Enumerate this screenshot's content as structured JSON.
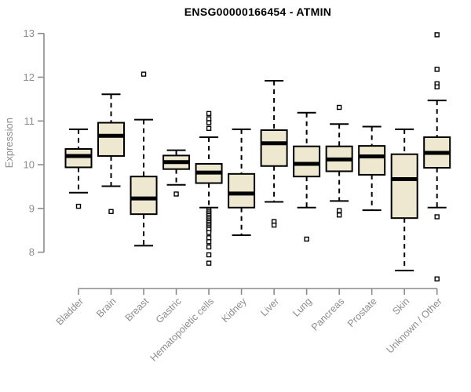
{
  "chart_data": {
    "type": "boxplot",
    "title": "ENSG00000166454 - ATMIN",
    "ylabel": "Expression",
    "xlabel": "",
    "yticks": [
      8,
      9,
      10,
      11,
      12,
      13
    ],
    "ylim": [
      7.3,
      13.1
    ],
    "grid": false,
    "legend": null,
    "categories": [
      "Bladder",
      "Brain",
      "Breast",
      "Gastric",
      "Hematopoietic cells",
      "Kidney",
      "Liver",
      "Lung",
      "Pancreas",
      "Prostate",
      "Skin",
      "Unknown / Other"
    ],
    "series": [
      {
        "category": "Bladder",
        "whisker_low": 9.36,
        "q1": 9.94,
        "median": 10.2,
        "q3": 10.36,
        "whisker_high": 10.81,
        "outliers": [
          9.05
        ]
      },
      {
        "category": "Brain",
        "whisker_low": 9.51,
        "q1": 10.2,
        "median": 10.66,
        "q3": 10.96,
        "whisker_high": 11.61,
        "outliers": [
          8.93
        ]
      },
      {
        "category": "Breast",
        "whisker_low": 8.15,
        "q1": 8.87,
        "median": 9.23,
        "q3": 9.73,
        "whisker_high": 11.03,
        "outliers": [
          12.07
        ]
      },
      {
        "category": "Gastric",
        "whisker_low": 9.54,
        "q1": 9.9,
        "median": 10.06,
        "q3": 10.21,
        "whisker_high": 10.33,
        "outliers": [
          9.33
        ]
      },
      {
        "category": "Hematopoietic cells",
        "whisker_low": 9.02,
        "q1": 9.58,
        "median": 9.82,
        "q3": 10.02,
        "whisker_high": 10.63,
        "outliers": [
          11.17,
          11.05,
          10.96,
          10.83,
          8.96,
          8.92,
          8.88,
          8.84,
          8.8,
          8.76,
          8.72,
          8.68,
          8.64,
          8.6,
          8.56,
          8.52,
          8.45,
          8.33,
          8.24,
          8.12,
          7.94,
          7.75
        ]
      },
      {
        "category": "Kidney",
        "whisker_low": 8.39,
        "q1": 9.02,
        "median": 9.34,
        "q3": 9.79,
        "whisker_high": 10.81,
        "outliers": []
      },
      {
        "category": "Liver",
        "whisker_low": 9.15,
        "q1": 9.97,
        "median": 10.49,
        "q3": 10.79,
        "whisker_high": 11.92,
        "outliers": [
          8.7,
          8.62
        ]
      },
      {
        "category": "Lung",
        "whisker_low": 9.02,
        "q1": 9.73,
        "median": 10.02,
        "q3": 10.42,
        "whisker_high": 11.19,
        "outliers": [
          8.3
        ]
      },
      {
        "category": "Pancreas",
        "whisker_low": 9.17,
        "q1": 9.85,
        "median": 10.12,
        "q3": 10.42,
        "whisker_high": 10.93,
        "outliers": [
          11.31,
          8.95,
          8.85
        ]
      },
      {
        "category": "Prostate",
        "whisker_low": 8.96,
        "q1": 9.77,
        "median": 10.19,
        "q3": 10.43,
        "whisker_high": 10.87,
        "outliers": []
      },
      {
        "category": "Skin",
        "whisker_low": 7.58,
        "q1": 8.78,
        "median": 9.67,
        "q3": 10.24,
        "whisker_high": 10.81,
        "outliers": []
      },
      {
        "category": "Unknown / Other",
        "whisker_low": 9.02,
        "q1": 9.93,
        "median": 10.27,
        "q3": 10.63,
        "whisker_high": 11.47,
        "outliers": [
          12.97,
          12.18,
          11.85,
          11.78,
          8.81,
          7.39
        ]
      }
    ],
    "colors": {
      "box_fill": "#EDE8CF",
      "box_border": "#000000",
      "median": "#000000",
      "whisker": "#000000",
      "outlier_border": "#000000",
      "axis": "#8C8C8C",
      "tick_label": "#8C8C8C",
      "title": "#000000",
      "background": "#FFFFFF"
    }
  }
}
